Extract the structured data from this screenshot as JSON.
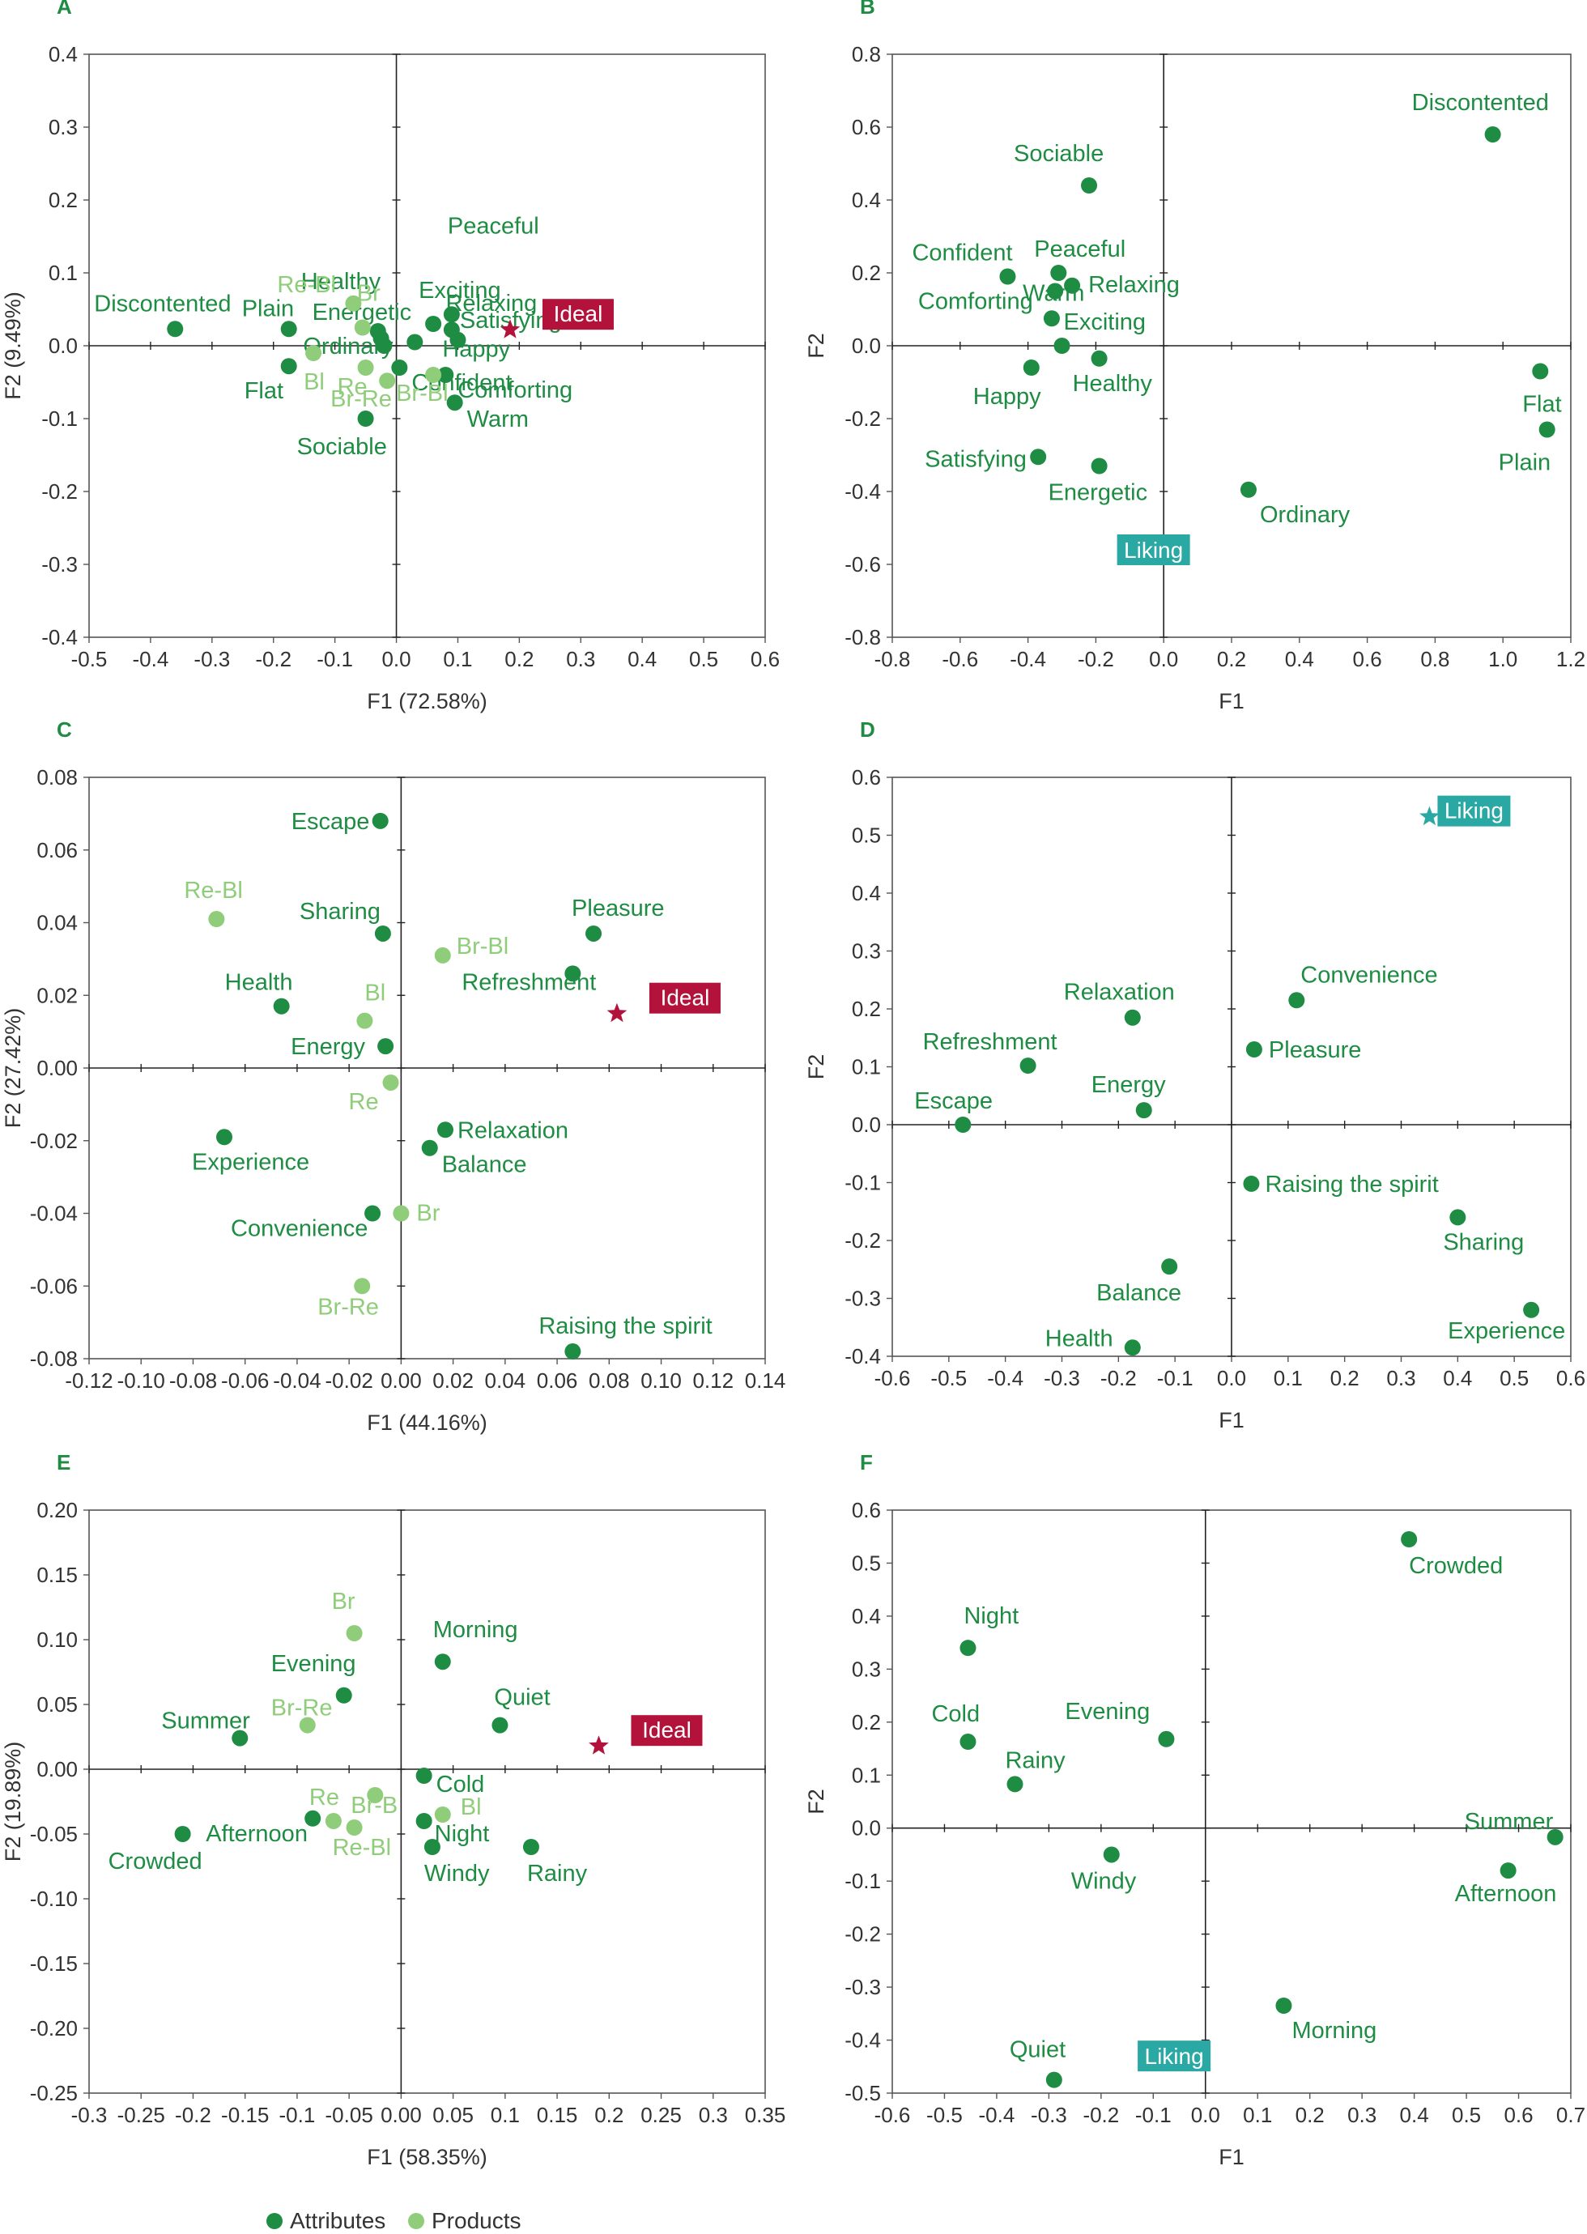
{
  "colors": {
    "attribute": "#1e8c43",
    "product": "#8fcd7a",
    "ideal": "#b3123a",
    "liking": "#2aa8a3",
    "text": "#333333",
    "frame": "#555555"
  },
  "legend": {
    "attributes_label": "Attributes",
    "products_label": "Products"
  },
  "chart_data": [
    {
      "panel": "A",
      "type": "scatter",
      "xlabel": "F1 (72.58%)",
      "ylabel": "F2 (9.49%)",
      "xlim": [
        -0.5,
        0.6
      ],
      "ylim": [
        -0.4,
        0.4
      ],
      "xticks": [
        "-0.5",
        "-0.4",
        "-0.3",
        "-0.2",
        "-0.1",
        "0.0",
        "0.1",
        "0.2",
        "0.3",
        "0.4",
        "0.5",
        "0.6"
      ],
      "yticks": [
        "0.4",
        "0.3",
        "0.2",
        "0.1",
        "0.0",
        "-0.1",
        "-0.2",
        "-0.3",
        "-0.4"
      ],
      "points": [
        {
          "label": "Discontented",
          "x": -0.36,
          "y": 0.023,
          "kind": "attribute"
        },
        {
          "label": "Plain",
          "x": -0.175,
          "y": 0.023,
          "kind": "attribute"
        },
        {
          "label": "Flat",
          "x": -0.175,
          "y": -0.028,
          "kind": "attribute"
        },
        {
          "label": "Sociable",
          "x": -0.05,
          "y": -0.1,
          "kind": "attribute"
        },
        {
          "label": "Healthy",
          "x": -0.03,
          "y": 0.02,
          "kind": "attribute"
        },
        {
          "label": "Energetic",
          "x": -0.025,
          "y": 0.01,
          "kind": "attribute"
        },
        {
          "label": "Ordinary",
          "x": -0.02,
          "y": 0.0,
          "kind": "attribute"
        },
        {
          "label": "Peaceful",
          "x": 0.09,
          "y": 0.043,
          "kind": "attribute"
        },
        {
          "label": "Relaxing",
          "x": 0.1,
          "y": 0.008,
          "kind": "attribute"
        },
        {
          "label": "Exciting",
          "x": 0.06,
          "y": 0.03,
          "kind": "attribute"
        },
        {
          "label": "Satisfying",
          "x": 0.09,
          "y": 0.022,
          "kind": "attribute"
        },
        {
          "label": "Happy",
          "x": 0.03,
          "y": 0.005,
          "kind": "attribute"
        },
        {
          "label": "Confident",
          "x": 0.005,
          "y": -0.03,
          "kind": "attribute"
        },
        {
          "label": "Comforting",
          "x": 0.08,
          "y": -0.04,
          "kind": "attribute"
        },
        {
          "label": "Warm",
          "x": 0.095,
          "y": -0.078,
          "kind": "attribute"
        },
        {
          "label": "Re-Bl",
          "x": -0.07,
          "y": 0.058,
          "kind": "product"
        },
        {
          "label": "Br",
          "x": -0.055,
          "y": 0.025,
          "kind": "product"
        },
        {
          "label": "Bl",
          "x": -0.135,
          "y": -0.01,
          "kind": "product"
        },
        {
          "label": "Re",
          "x": -0.05,
          "y": -0.03,
          "kind": "product"
        },
        {
          "label": "Br-Re",
          "x": -0.015,
          "y": -0.048,
          "kind": "product"
        },
        {
          "label": "Br-Bl",
          "x": 0.06,
          "y": -0.04,
          "kind": "product"
        },
        {
          "label": "Ideal",
          "x": 0.185,
          "y": 0.022,
          "kind": "ideal"
        }
      ]
    },
    {
      "panel": "B",
      "type": "scatter",
      "xlabel": "F1",
      "ylabel": "F2",
      "xlim": [
        -0.8,
        1.2
      ],
      "ylim": [
        -0.8,
        0.8
      ],
      "xticks": [
        "-0.8",
        "-0.6",
        "-0.4",
        "-0.2",
        "0.0",
        "0.2",
        "0.4",
        "0.6",
        "0.8",
        "1.0",
        "1.2"
      ],
      "yticks": [
        "0.8",
        "0.6",
        "0.4",
        "0.2",
        "0.0",
        "-0.2",
        "-0.4",
        "-0.6",
        "-0.8"
      ],
      "points": [
        {
          "label": "Discontented",
          "x": 0.97,
          "y": 0.58,
          "kind": "attribute"
        },
        {
          "label": "Sociable",
          "x": -0.22,
          "y": 0.44,
          "kind": "attribute"
        },
        {
          "label": "Confident",
          "x": -0.46,
          "y": 0.19,
          "kind": "attribute"
        },
        {
          "label": "Peaceful",
          "x": -0.31,
          "y": 0.2,
          "kind": "attribute"
        },
        {
          "label": "Warm",
          "x": -0.32,
          "y": 0.15,
          "kind": "attribute"
        },
        {
          "label": "Relaxing",
          "x": -0.27,
          "y": 0.165,
          "kind": "attribute"
        },
        {
          "label": "Comforting",
          "x": -0.33,
          "y": 0.075,
          "kind": "attribute"
        },
        {
          "label": "Exciting",
          "x": -0.3,
          "y": 0.0,
          "kind": "attribute"
        },
        {
          "label": "Happy",
          "x": -0.39,
          "y": -0.06,
          "kind": "attribute"
        },
        {
          "label": "Healthy",
          "x": -0.19,
          "y": -0.035,
          "kind": "attribute"
        },
        {
          "label": "Satisfying",
          "x": -0.37,
          "y": -0.305,
          "kind": "attribute"
        },
        {
          "label": "Energetic",
          "x": -0.19,
          "y": -0.33,
          "kind": "attribute"
        },
        {
          "label": "Ordinary",
          "x": 0.25,
          "y": -0.395,
          "kind": "attribute"
        },
        {
          "label": "Flat",
          "x": 1.11,
          "y": -0.07,
          "kind": "attribute"
        },
        {
          "label": "Plain",
          "x": 1.13,
          "y": -0.23,
          "kind": "attribute"
        },
        {
          "label": "Liking",
          "x": -0.03,
          "y": -0.56,
          "kind": "liking"
        }
      ]
    },
    {
      "panel": "C",
      "type": "scatter",
      "xlabel": "F1 (44.16%)",
      "ylabel": "F2 (27.42%)",
      "xlim": [
        -0.12,
        0.14
      ],
      "ylim": [
        -0.08,
        0.08
      ],
      "xticks": [
        "-0.12",
        "-0.10",
        "-0.08",
        "-0.06",
        "-0.04",
        "-0.02",
        "0.00",
        "0.02",
        "0.04",
        "0.06",
        "0.08",
        "0.10",
        "0.12",
        "0.14"
      ],
      "yticks": [
        "0.08",
        "0.06",
        "0.04",
        "0.02",
        "0.00",
        "-0.02",
        "-0.04",
        "-0.06",
        "-0.08"
      ],
      "points": [
        {
          "label": "Escape",
          "x": -0.008,
          "y": 0.068,
          "kind": "attribute"
        },
        {
          "label": "Sharing",
          "x": -0.007,
          "y": 0.037,
          "kind": "attribute"
        },
        {
          "label": "Pleasure",
          "x": 0.074,
          "y": 0.037,
          "kind": "attribute"
        },
        {
          "label": "Refreshment",
          "x": 0.066,
          "y": 0.026,
          "kind": "attribute"
        },
        {
          "label": "Health",
          "x": -0.046,
          "y": 0.017,
          "kind": "attribute"
        },
        {
          "label": "Energy",
          "x": -0.006,
          "y": 0.006,
          "kind": "attribute"
        },
        {
          "label": "Experience",
          "x": -0.068,
          "y": -0.019,
          "kind": "attribute"
        },
        {
          "label": "Relaxation",
          "x": 0.017,
          "y": -0.017,
          "kind": "attribute"
        },
        {
          "label": "Balance",
          "x": 0.011,
          "y": -0.022,
          "kind": "attribute"
        },
        {
          "label": "Convenience",
          "x": -0.011,
          "y": -0.04,
          "kind": "attribute"
        },
        {
          "label": "Raising the spirit",
          "x": 0.066,
          "y": -0.078,
          "kind": "attribute"
        },
        {
          "label": "Re-Bl",
          "x": -0.071,
          "y": 0.041,
          "kind": "product"
        },
        {
          "label": "Br-Bl",
          "x": 0.016,
          "y": 0.031,
          "kind": "product"
        },
        {
          "label": "Bl",
          "x": -0.014,
          "y": 0.013,
          "kind": "product"
        },
        {
          "label": "Re",
          "x": -0.004,
          "y": -0.004,
          "kind": "product"
        },
        {
          "label": "Br",
          "x": 0.0,
          "y": -0.04,
          "kind": "product"
        },
        {
          "label": "Br-Re",
          "x": -0.015,
          "y": -0.06,
          "kind": "product"
        },
        {
          "label": "Ideal",
          "x": 0.083,
          "y": 0.015,
          "kind": "ideal"
        }
      ]
    },
    {
      "panel": "D",
      "type": "scatter",
      "xlabel": "F1",
      "ylabel": "F2",
      "xlim": [
        -0.6,
        0.6
      ],
      "ylim": [
        -0.4,
        0.6
      ],
      "xticks": [
        "-0.6",
        "-0.5",
        "-0.4",
        "-0.3",
        "-0.2",
        "-0.1",
        "0.0",
        "0.1",
        "0.2",
        "0.3",
        "0.4",
        "0.5",
        "0.6"
      ],
      "yticks": [
        "0.6",
        "0.5",
        "0.4",
        "0.3",
        "0.2",
        "0.1",
        "0.0",
        "-0.1",
        "-0.2",
        "-0.3",
        "-0.4"
      ],
      "points": [
        {
          "label": "Relaxation",
          "x": -0.175,
          "y": 0.185,
          "kind": "attribute"
        },
        {
          "label": "Refreshment",
          "x": -0.36,
          "y": 0.102,
          "kind": "attribute"
        },
        {
          "label": "Energy",
          "x": -0.155,
          "y": 0.025,
          "kind": "attribute"
        },
        {
          "label": "Escape",
          "x": -0.475,
          "y": 0.0,
          "kind": "attribute"
        },
        {
          "label": "Convenience",
          "x": 0.115,
          "y": 0.215,
          "kind": "attribute"
        },
        {
          "label": "Pleasure",
          "x": 0.04,
          "y": 0.13,
          "kind": "attribute"
        },
        {
          "label": "Raising the spirit",
          "x": 0.035,
          "y": -0.102,
          "kind": "attribute"
        },
        {
          "label": "Sharing",
          "x": 0.4,
          "y": -0.16,
          "kind": "attribute"
        },
        {
          "label": "Experience",
          "x": 0.53,
          "y": -0.32,
          "kind": "attribute"
        },
        {
          "label": "Balance",
          "x": -0.11,
          "y": -0.245,
          "kind": "attribute"
        },
        {
          "label": "Health",
          "x": -0.175,
          "y": -0.385,
          "kind": "attribute"
        },
        {
          "label": "Liking",
          "x": 0.35,
          "y": 0.532,
          "kind": "liking"
        }
      ]
    },
    {
      "panel": "E",
      "type": "scatter",
      "xlabel": "F1 (58.35%)",
      "ylabel": "F2 (19.89%)",
      "xlim": [
        -0.3,
        0.35
      ],
      "ylim": [
        -0.25,
        0.2
      ],
      "xticks": [
        "-0.3",
        "-0.25",
        "-0.2",
        "-0.15",
        "-0.1",
        "-0.05",
        "0.00",
        "0.05",
        "0.1",
        "0.15",
        "0.2",
        "0.25",
        "0.3",
        "0.35"
      ],
      "yticks": [
        "0.20",
        "0.15",
        "0.10",
        "0.05",
        "0.00",
        "-0.05",
        "-0.10",
        "-0.15",
        "-0.20",
        "-0.25"
      ],
      "points": [
        {
          "label": "Morning",
          "x": 0.04,
          "y": 0.083,
          "kind": "attribute"
        },
        {
          "label": "Evening",
          "x": -0.055,
          "y": 0.057,
          "kind": "attribute"
        },
        {
          "label": "Summer",
          "x": -0.155,
          "y": 0.024,
          "kind": "attribute"
        },
        {
          "label": "Quiet",
          "x": 0.095,
          "y": 0.034,
          "kind": "attribute"
        },
        {
          "label": "Cold",
          "x": 0.022,
          "y": -0.005,
          "kind": "attribute"
        },
        {
          "label": "Afternoon",
          "x": -0.085,
          "y": -0.038,
          "kind": "attribute"
        },
        {
          "label": "Crowded",
          "x": -0.21,
          "y": -0.05,
          "kind": "attribute"
        },
        {
          "label": "Night",
          "x": 0.022,
          "y": -0.04,
          "kind": "attribute"
        },
        {
          "label": "Windy",
          "x": 0.03,
          "y": -0.06,
          "kind": "attribute"
        },
        {
          "label": "Rainy",
          "x": 0.125,
          "y": -0.06,
          "kind": "attribute"
        },
        {
          "label": "Br",
          "x": -0.045,
          "y": 0.105,
          "kind": "product"
        },
        {
          "label": "Br-Re",
          "x": -0.09,
          "y": 0.034,
          "kind": "product"
        },
        {
          "label": "Re",
          "x": -0.065,
          "y": -0.04,
          "kind": "product"
        },
        {
          "label": "Br-B",
          "x": -0.025,
          "y": -0.02,
          "kind": "product"
        },
        {
          "label": "Re-Bl",
          "x": -0.045,
          "y": -0.045,
          "kind": "product"
        },
        {
          "label": "Bl",
          "x": 0.04,
          "y": -0.035,
          "kind": "product"
        },
        {
          "label": "Ideal",
          "x": 0.19,
          "y": 0.018,
          "kind": "ideal"
        }
      ]
    },
    {
      "panel": "F",
      "type": "scatter",
      "xlabel": "F1",
      "ylabel": "F2",
      "xlim": [
        -0.6,
        0.7
      ],
      "ylim": [
        -0.5,
        0.6
      ],
      "xticks": [
        "-0.6",
        "-0.5",
        "-0.4",
        "-0.3",
        "-0.2",
        "-0.1",
        "0.0",
        "0.1",
        "0.2",
        "0.3",
        "0.4",
        "0.5",
        "0.6",
        "0.7"
      ],
      "yticks": [
        "0.6",
        "0.5",
        "0.4",
        "0.3",
        "0.2",
        "0.1",
        "0.0",
        "-0.1",
        "-0.2",
        "-0.3",
        "-0.4",
        "-0.5"
      ],
      "points": [
        {
          "label": "Crowded",
          "x": 0.39,
          "y": 0.545,
          "kind": "attribute"
        },
        {
          "label": "Night",
          "x": -0.455,
          "y": 0.34,
          "kind": "attribute"
        },
        {
          "label": "Cold",
          "x": -0.455,
          "y": 0.163,
          "kind": "attribute"
        },
        {
          "label": "Rainy",
          "x": -0.365,
          "y": 0.083,
          "kind": "attribute"
        },
        {
          "label": "Evening",
          "x": -0.075,
          "y": 0.168,
          "kind": "attribute"
        },
        {
          "label": "Summer",
          "x": 0.67,
          "y": -0.017,
          "kind": "attribute"
        },
        {
          "label": "Windy",
          "x": -0.18,
          "y": -0.05,
          "kind": "attribute"
        },
        {
          "label": "Afternoon",
          "x": 0.58,
          "y": -0.08,
          "kind": "attribute"
        },
        {
          "label": "Morning",
          "x": 0.15,
          "y": -0.335,
          "kind": "attribute"
        },
        {
          "label": "Quiet",
          "x": -0.29,
          "y": -0.475,
          "kind": "attribute"
        },
        {
          "label": "Liking",
          "x": -0.06,
          "y": -0.43,
          "kind": "liking"
        }
      ]
    }
  ]
}
